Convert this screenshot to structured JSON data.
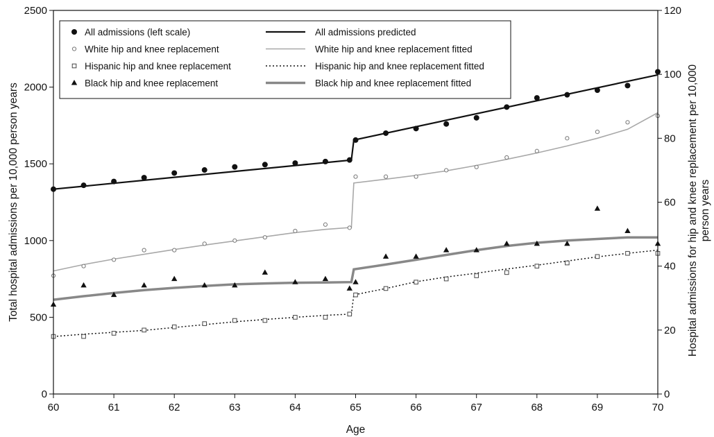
{
  "chart_data": {
    "type": "scatter",
    "xlabel": "Age",
    "ylabel_left": "Total hospital admissions per 10,000 person years",
    "ylabel_right_lines": [
      "Hospital admissions for hip and knee replacement per 10,000",
      "person years"
    ],
    "xlim": [
      60,
      70
    ],
    "ylim_left": [
      0,
      2500
    ],
    "ylim_right": [
      0,
      120
    ],
    "x_ticks": [
      60,
      61,
      62,
      63,
      64,
      65,
      66,
      67,
      68,
      69,
      70
    ],
    "y_ticks_left": [
      0,
      500,
      1000,
      1500,
      2000,
      2500
    ],
    "y_ticks_right": [
      0,
      20,
      40,
      60,
      80,
      100,
      120
    ],
    "grid": false,
    "legend_position": "top-left",
    "series": [
      {
        "name": "All admissions (left scale)",
        "kind": "points",
        "marker": "filled-circle",
        "axis": "left",
        "x": [
          60.0,
          60.5,
          61.0,
          61.5,
          62.0,
          62.5,
          63.0,
          63.5,
          64.0,
          64.5,
          64.9,
          65.0,
          65.5,
          66.0,
          66.5,
          67.0,
          67.5,
          68.0,
          68.5,
          69.0,
          69.5,
          70.0
        ],
        "y": [
          1335,
          1360,
          1385,
          1410,
          1440,
          1460,
          1480,
          1495,
          1505,
          1515,
          1525,
          1655,
          1700,
          1730,
          1760,
          1800,
          1870,
          1930,
          1950,
          1980,
          2010,
          2100
        ]
      },
      {
        "name": "White hip and knee replacement",
        "kind": "points",
        "marker": "open-circle",
        "axis": "right",
        "x": [
          60.0,
          60.5,
          61.0,
          61.5,
          62.0,
          62.5,
          63.0,
          63.5,
          64.0,
          64.5,
          64.9,
          65.0,
          65.5,
          66.0,
          66.5,
          67.0,
          67.5,
          68.0,
          68.5,
          69.0,
          69.5,
          70.0
        ],
        "y": [
          37,
          40,
          42,
          45,
          45,
          47,
          48,
          49,
          51,
          53,
          52,
          68,
          68,
          68,
          70,
          71,
          74,
          76,
          80,
          82,
          85,
          87
        ]
      },
      {
        "name": "Hispanic hip and knee replacement",
        "kind": "points",
        "marker": "open-square",
        "axis": "right",
        "x": [
          60.0,
          60.5,
          61.0,
          61.5,
          62.0,
          62.5,
          63.0,
          63.5,
          64.0,
          64.5,
          64.9,
          65.0,
          65.5,
          66.0,
          66.5,
          67.0,
          67.5,
          68.0,
          68.5,
          69.0,
          69.5,
          70.0
        ],
        "y": [
          18,
          18,
          19,
          20,
          21,
          22,
          23,
          23,
          24,
          24,
          25,
          31,
          33,
          35,
          36,
          37,
          38,
          40,
          41,
          43,
          44,
          44
        ]
      },
      {
        "name": "Black hip and knee replacement",
        "kind": "points",
        "marker": "filled-triangle",
        "axis": "right",
        "x": [
          60.0,
          60.5,
          61.0,
          61.5,
          62.0,
          62.5,
          63.0,
          63.5,
          64.0,
          64.5,
          64.9,
          65.0,
          65.5,
          66.0,
          66.5,
          67.0,
          67.5,
          68.0,
          68.5,
          69.0,
          69.5,
          70.0
        ],
        "y": [
          28,
          34,
          31,
          34,
          36,
          34,
          34,
          38,
          35,
          36,
          33,
          35,
          43,
          43,
          45,
          45,
          47,
          47,
          47,
          58,
          51,
          47
        ]
      },
      {
        "name": "All admissions predicted",
        "kind": "line",
        "style": "solid-black",
        "axis": "left",
        "x": [
          60.0,
          64.93,
          64.97,
          70.0
        ],
        "y": [
          1335,
          1525,
          1655,
          2080
        ]
      },
      {
        "name": "White hip and knee replacement fitted",
        "kind": "line",
        "style": "solid-light-gray",
        "axis": "right",
        "x": [
          60.0,
          60.5,
          61.0,
          61.5,
          62.0,
          62.5,
          63.0,
          63.5,
          64.0,
          64.5,
          64.93,
          64.97,
          65.5,
          66.0,
          66.5,
          67.0,
          67.5,
          68.0,
          68.5,
          69.0,
          69.5,
          70.0
        ],
        "y": [
          38.5,
          40.5,
          42.2,
          43.7,
          45.2,
          46.6,
          47.9,
          49.2,
          50.5,
          51.5,
          52.1,
          66,
          67.2,
          68.4,
          69.8,
          71.5,
          73.4,
          75.4,
          77.6,
          80,
          82.8,
          88
        ]
      },
      {
        "name": "Hispanic hip and knee replacement fitted",
        "kind": "line",
        "style": "dotted-black",
        "axis": "right",
        "x": [
          60.0,
          60.5,
          61.0,
          61.5,
          62.0,
          62.5,
          63.0,
          63.5,
          64.0,
          64.5,
          64.93,
          64.97,
          65.5,
          66.0,
          66.5,
          67.0,
          67.5,
          68.0,
          68.5,
          69.0,
          69.5,
          70.0
        ],
        "y": [
          18,
          18.7,
          19.3,
          19.9,
          20.8,
          21.7,
          22.6,
          23.3,
          24,
          24.6,
          25,
          31,
          33,
          35.1,
          36.6,
          37.8,
          39.1,
          40.3,
          41.6,
          42.9,
          44,
          45
        ]
      },
      {
        "name": "Black hip and knee replacement fitted",
        "kind": "line",
        "style": "thick-gray",
        "axis": "right",
        "x": [
          60.0,
          60.5,
          61.0,
          61.5,
          62.0,
          62.5,
          63.0,
          63.5,
          64.0,
          64.5,
          64.93,
          64.97,
          65.5,
          66.0,
          66.5,
          67.0,
          67.5,
          68.0,
          68.5,
          69.0,
          69.5,
          70.0
        ],
        "y": [
          29.5,
          30.6,
          31.6,
          32.5,
          33.2,
          33.8,
          34.3,
          34.6,
          34.8,
          34.9,
          35,
          39,
          40.5,
          42,
          43.5,
          45,
          46.3,
          47.3,
          48,
          48.5,
          49,
          49
        ]
      }
    ]
  }
}
